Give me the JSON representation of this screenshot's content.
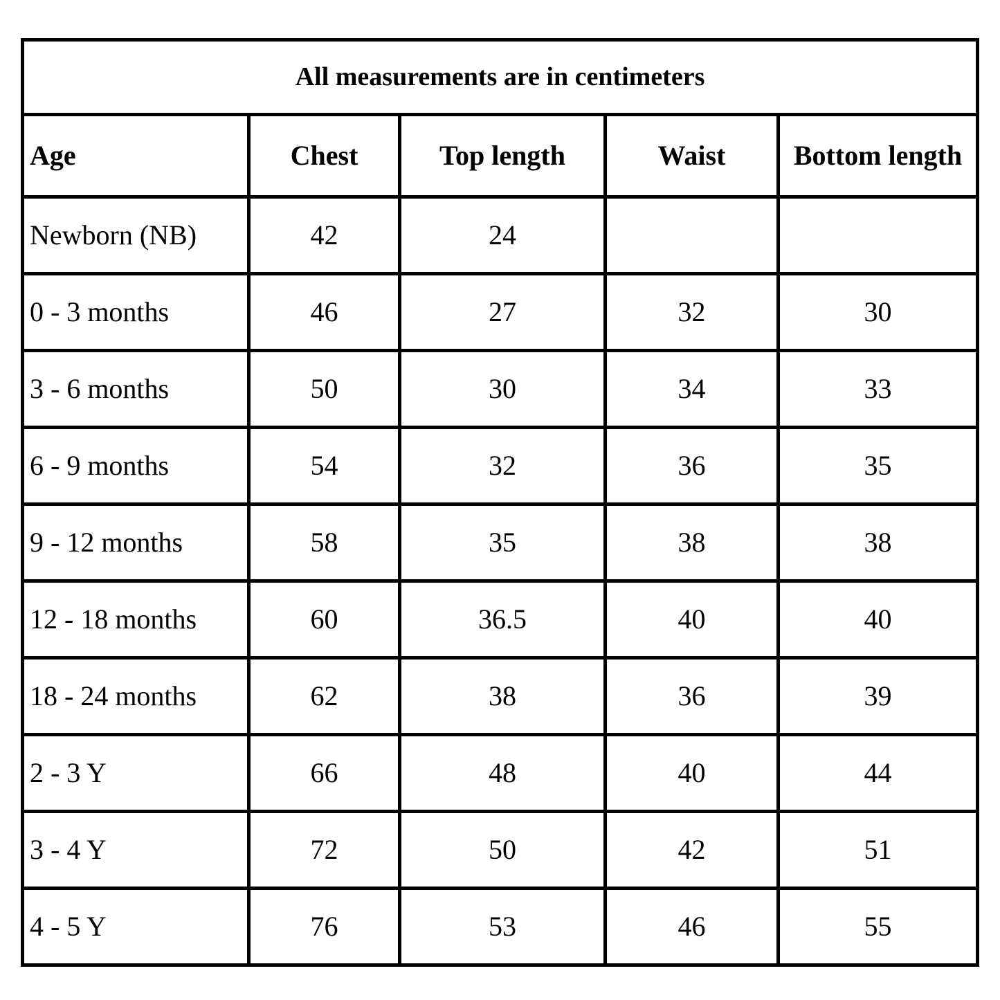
{
  "table": {
    "title": "All measurements are in centimeters",
    "columns": [
      "Age",
      "Chest",
      "Top length",
      "Waist",
      "Bottom length"
    ],
    "rows": [
      [
        "Newborn (NB)",
        42,
        24,
        null,
        null
      ],
      [
        "0 - 3 months",
        46,
        27,
        32,
        30
      ],
      [
        "3 - 6 months",
        50,
        30,
        34,
        33
      ],
      [
        "6 - 9 months",
        54,
        32,
        36,
        35
      ],
      [
        "9 - 12 months",
        58,
        35,
        38,
        38
      ],
      [
        "12 - 18 months",
        60,
        36.5,
        40,
        40
      ],
      [
        "18 - 24 months",
        62,
        38,
        36,
        39
      ],
      [
        "2 - 3 Y",
        66,
        48,
        40,
        44
      ],
      [
        "3 - 4 Y",
        72,
        50,
        42,
        51
      ],
      [
        "4 - 5 Y",
        76,
        53,
        46,
        55
      ]
    ]
  }
}
